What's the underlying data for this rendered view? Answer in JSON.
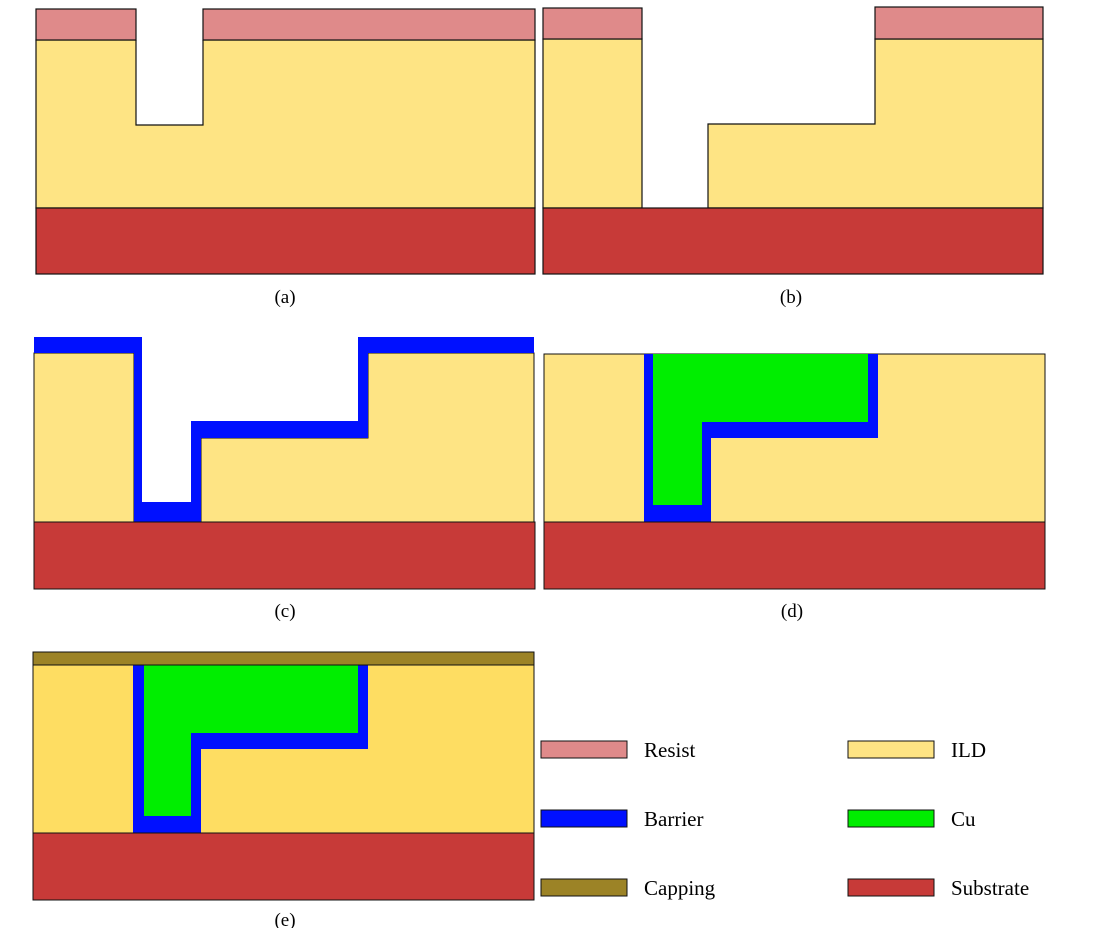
{
  "colors": {
    "resist": "#df8a8a",
    "ild": "#fee484",
    "ild_e": "#fedd62",
    "barrier": "#0010ff",
    "cu": "#00ee00",
    "capping": "#9c8326",
    "substrate": "#c73a38",
    "outline": "#111111"
  },
  "panels": [
    {
      "id": "a",
      "caption": "(a)"
    },
    {
      "id": "b",
      "caption": "(b)"
    },
    {
      "id": "c",
      "caption": "(c)"
    },
    {
      "id": "d",
      "caption": "(d)"
    },
    {
      "id": "e",
      "caption": "(e)"
    }
  ],
  "legend": {
    "resist": "Resist",
    "ild": "ILD",
    "barrier": "Barrier",
    "cu": "Cu",
    "capping": "Capping",
    "substrate": "Substrate"
  }
}
